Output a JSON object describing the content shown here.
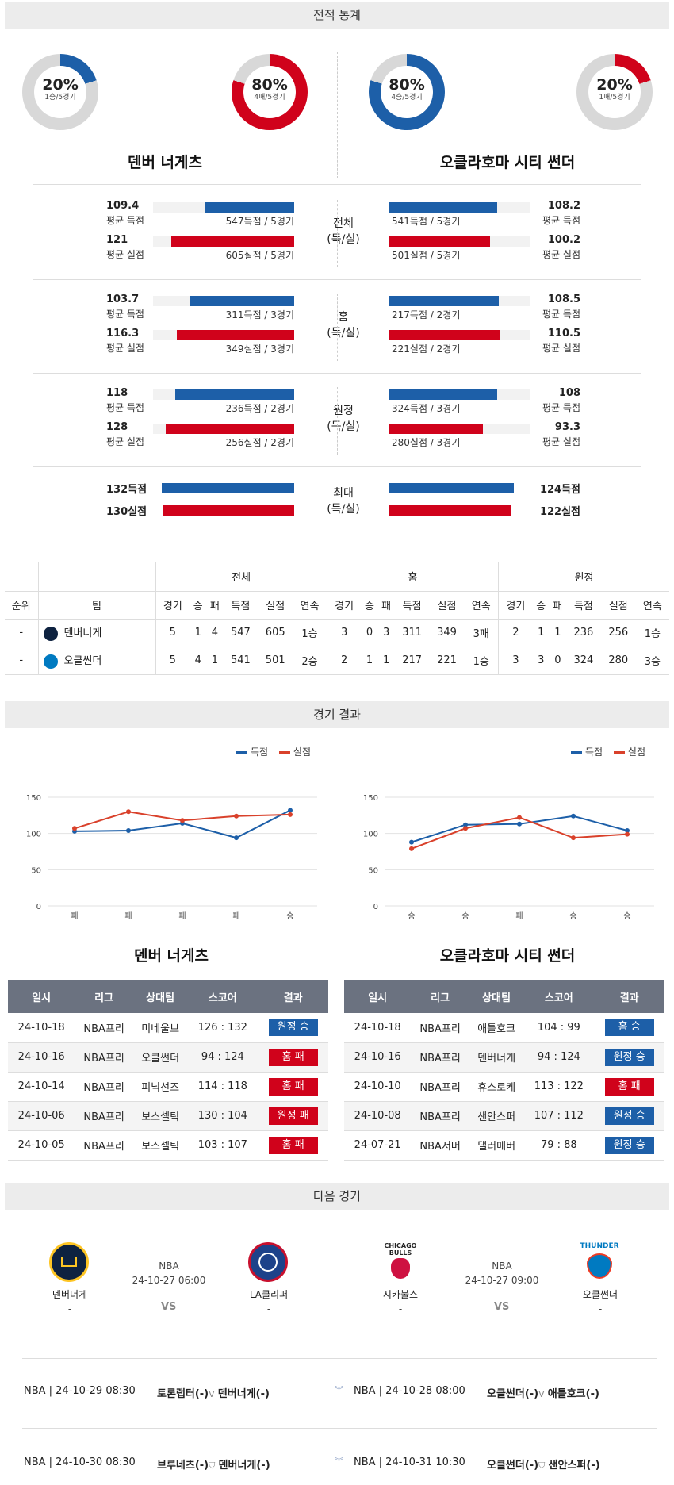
{
  "headers": {
    "stats": "전적 통계",
    "results": "경기 결과",
    "next": "다음 경기"
  },
  "donuts": [
    {
      "pct": "20%",
      "sub": "1승/5경기",
      "fraction": 0.2,
      "color": "#1d5fa8"
    },
    {
      "pct": "80%",
      "sub": "4패/5경기",
      "fraction": 0.8,
      "color": "#d0021b"
    },
    {
      "pct": "80%",
      "sub": "4승/5경기",
      "fraction": 0.8,
      "color": "#1d5fa8"
    },
    {
      "pct": "20%",
      "sub": "1패/5경기",
      "fraction": 0.2,
      "color": "#d0021b"
    }
  ],
  "teams": {
    "home": "덴버 너게츠",
    "away": "오클라호마 시티 썬더"
  },
  "stat_groups": [
    {
      "mid1": "전체",
      "mid2": "(득/실)",
      "left": [
        {
          "val": "109.4",
          "lbl": "평균 득점",
          "cap": "547득점 / 5경기",
          "frac": 0.63,
          "color": "blue"
        },
        {
          "val": "121",
          "lbl": "평균 실점",
          "cap": "605실점 / 5경기",
          "frac": 0.87,
          "color": "red"
        }
      ],
      "right": [
        {
          "val": "108.2",
          "lbl": "평균 득점",
          "cap": "541득점 / 5경기",
          "frac": 0.77,
          "color": "blue"
        },
        {
          "val": "100.2",
          "lbl": "평균 실점",
          "cap": "501실점 / 5경기",
          "frac": 0.72,
          "color": "red"
        }
      ]
    },
    {
      "mid1": "홈",
      "mid2": "(득/실)",
      "left": [
        {
          "val": "103.7",
          "lbl": "평균 득점",
          "cap": "311득점 / 3경기",
          "frac": 0.74,
          "color": "blue"
        },
        {
          "val": "116.3",
          "lbl": "평균 실점",
          "cap": "349실점 / 3경기",
          "frac": 0.83,
          "color": "red"
        }
      ],
      "right": [
        {
          "val": "108.5",
          "lbl": "평균 득점",
          "cap": "217득점 / 2경기",
          "frac": 0.78,
          "color": "blue"
        },
        {
          "val": "110.5",
          "lbl": "평균 실점",
          "cap": "221실점 / 2경기",
          "frac": 0.79,
          "color": "red"
        }
      ]
    },
    {
      "mid1": "원정",
      "mid2": "(득/실)",
      "left": [
        {
          "val": "118",
          "lbl": "평균 득점",
          "cap": "236득점 / 2경기",
          "frac": 0.84,
          "color": "blue"
        },
        {
          "val": "128",
          "lbl": "평균 실점",
          "cap": "256실점 / 2경기",
          "frac": 0.91,
          "color": "red"
        }
      ],
      "right": [
        {
          "val": "108",
          "lbl": "평균 득점",
          "cap": "324득점 / 3경기",
          "frac": 0.77,
          "color": "blue"
        },
        {
          "val": "93.3",
          "lbl": "평균 실점",
          "cap": "280실점 / 3경기",
          "frac": 0.67,
          "color": "red"
        }
      ]
    }
  ],
  "max_group": {
    "mid1": "최대",
    "mid2": "(득/실)",
    "left": [
      {
        "val": "132득점",
        "frac": 0.94,
        "color": "blue"
      },
      {
        "val": "130실점",
        "frac": 0.93,
        "color": "red"
      }
    ],
    "right": [
      {
        "val": "124득점",
        "frac": 0.89,
        "color": "blue"
      },
      {
        "val": "122실점",
        "frac": 0.87,
        "color": "red"
      }
    ]
  },
  "standings": {
    "groups": [
      "전체",
      "홈",
      "원정"
    ],
    "cols": [
      "순위",
      "팀",
      "경기",
      "승",
      "패",
      "득점",
      "실점",
      "연속",
      "경기",
      "승",
      "패",
      "득점",
      "실점",
      "연속",
      "경기",
      "승",
      "패",
      "득점",
      "실점",
      "연속"
    ],
    "rows": [
      {
        "rank": "-",
        "team": "덴버너게",
        "logo": "#0e2240",
        "cells": [
          "5",
          "1",
          "4",
          "547",
          "605",
          "1승",
          "3",
          "0",
          "3",
          "311",
          "349",
          "3패",
          "2",
          "1",
          "1",
          "236",
          "256",
          "1승"
        ]
      },
      {
        "rank": "-",
        "team": "오클썬더",
        "logo": "#007ac1",
        "cells": [
          "5",
          "4",
          "1",
          "541",
          "501",
          "2승",
          "2",
          "1",
          "1",
          "217",
          "221",
          "1승",
          "3",
          "3",
          "0",
          "324",
          "280",
          "3승"
        ]
      }
    ]
  },
  "legend": {
    "scored": "득점",
    "allowed": "실점",
    "scored_color": "#1d5fa8",
    "allowed_color": "#d9412b"
  },
  "chart_data": [
    {
      "type": "line",
      "categories": [
        "패",
        "패",
        "패",
        "패",
        "승"
      ],
      "ylim": [
        0,
        150
      ],
      "yticks": [
        0,
        50,
        100,
        150
      ],
      "series": [
        {
          "name": "득점",
          "values": [
            103,
            104,
            114,
            94,
            132
          ]
        },
        {
          "name": "실점",
          "values": [
            107,
            130,
            118,
            124,
            126
          ]
        }
      ]
    },
    {
      "type": "line",
      "categories": [
        "승",
        "승",
        "패",
        "승",
        "승"
      ],
      "ylim": [
        0,
        150
      ],
      "yticks": [
        0,
        50,
        100,
        150
      ],
      "series": [
        {
          "name": "득점",
          "values": [
            88,
            112,
            113,
            124,
            104
          ]
        },
        {
          "name": "실점",
          "values": [
            79,
            107,
            122,
            94,
            99
          ]
        }
      ]
    }
  ],
  "results": {
    "cols": [
      "일시",
      "리그",
      "상대팀",
      "스코어",
      "결과"
    ],
    "home": [
      {
        "date": "24-10-18",
        "league": "NBA프리",
        "opp": "미네울브",
        "score": "126 : 132",
        "result": "원정 승",
        "color": "blue"
      },
      {
        "date": "24-10-16",
        "league": "NBA프리",
        "opp": "오클썬더",
        "score": "94 : 124",
        "result": "홈 패",
        "color": "red"
      },
      {
        "date": "24-10-14",
        "league": "NBA프리",
        "opp": "피닉선즈",
        "score": "114 : 118",
        "result": "홈 패",
        "color": "red"
      },
      {
        "date": "24-10-06",
        "league": "NBA프리",
        "opp": "보스셀틱",
        "score": "130 : 104",
        "result": "원정 패",
        "color": "red"
      },
      {
        "date": "24-10-05",
        "league": "NBA프리",
        "opp": "보스셀틱",
        "score": "103 : 107",
        "result": "홈 패",
        "color": "red"
      }
    ],
    "away": [
      {
        "date": "24-10-18",
        "league": "NBA프리",
        "opp": "애틀호크",
        "score": "104 : 99",
        "result": "홈 승",
        "color": "blue"
      },
      {
        "date": "24-10-16",
        "league": "NBA프리",
        "opp": "덴버너게",
        "score": "94 : 124",
        "result": "원정 승",
        "color": "blue"
      },
      {
        "date": "24-10-10",
        "league": "NBA프리",
        "opp": "휴스로케",
        "score": "113 : 122",
        "result": "홈 패",
        "color": "red"
      },
      {
        "date": "24-10-08",
        "league": "NBA프리",
        "opp": "샌안스퍼",
        "score": "107 : 112",
        "result": "원정 승",
        "color": "blue"
      },
      {
        "date": "24-07-21",
        "league": "NBA서머",
        "opp": "댈러매버",
        "score": "79 : 88",
        "result": "원정 승",
        "color": "blue"
      }
    ]
  },
  "next": {
    "left": {
      "team1": "덴버너게",
      "team2": "LA클리퍼",
      "league": "NBA",
      "time": "24-10-27 06:00",
      "dash": "-",
      "vs": "VS"
    },
    "right": {
      "team1": "시카불스",
      "team2": "오클썬더",
      "league": "NBA",
      "time": "24-10-27 09:00",
      "dash": "-",
      "vs": "VS"
    }
  },
  "upcoming": [
    {
      "left": {
        "info": "NBA | 24-10-29 08:30",
        "t1": "토론랩터(-)",
        "t2": "덴버너게(-)"
      },
      "right": {
        "info": "NBA | 24-10-28 08:00",
        "t1": "오클썬더(-)",
        "t2": "애틀호크(-)"
      }
    },
    {
      "left": {
        "info": "NBA | 24-10-30 08:30",
        "t1": "브루네츠(-)",
        "t2": "덴버너게(-)"
      },
      "right": {
        "info": "NBA | 24-10-31 10:30",
        "t1": "오클썬더(-)",
        "t2": "샌안스퍼(-)"
      }
    }
  ]
}
